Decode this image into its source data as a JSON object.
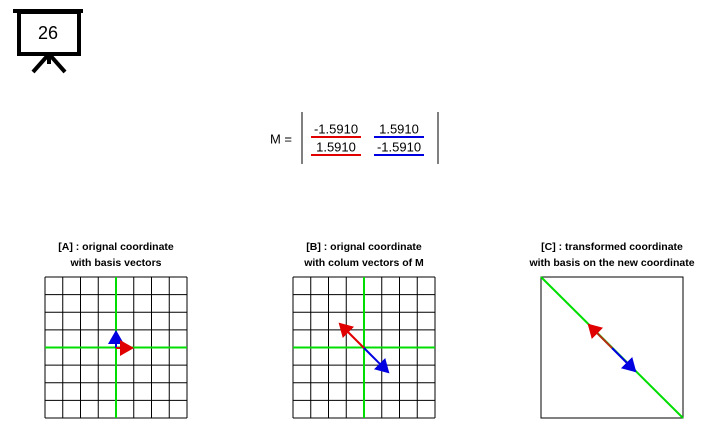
{
  "slide_number": "26",
  "matrix": {
    "label": "M =",
    "rows": [
      [
        "-1.5910",
        "1.5910"
      ],
      [
        "1.5910",
        "-1.5910"
      ]
    ]
  },
  "panels": [
    {
      "title": [
        "[A] : orignal coordinate",
        "with basis vectors"
      ]
    },
    {
      "title": [
        "[B] : orignal coordinate",
        "with colum vectors of M"
      ]
    },
    {
      "title": [
        "[C] : transformed coordinate",
        "with basis on the new coordinate"
      ]
    }
  ]
}
